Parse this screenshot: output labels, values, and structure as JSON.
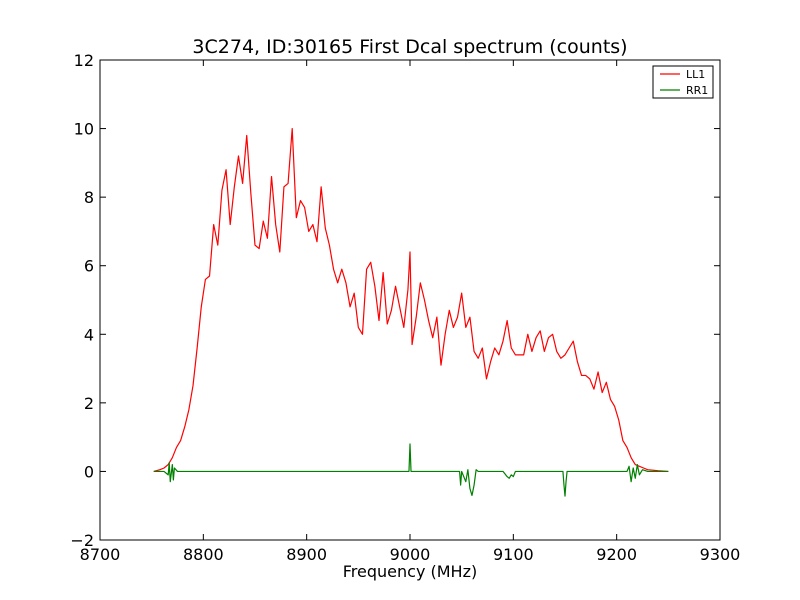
{
  "chart_data": {
    "type": "line",
    "title": "3C274, ID:30165 First Dcal spectrum (counts)",
    "xlabel": "Frequency (MHz)",
    "ylabel": "",
    "xlim": [
      8700,
      9300
    ],
    "ylim": [
      -2,
      12
    ],
    "xticks": [
      "8700",
      "8800",
      "8900",
      "9000",
      "9100",
      "9200",
      "9300"
    ],
    "yticks": [
      "−2",
      "0",
      "2",
      "4",
      "6",
      "8",
      "10",
      "12"
    ],
    "legend_placement": "top-right",
    "grid": false,
    "series": [
      {
        "name": "LL1",
        "color": "#ff0000",
        "x": [
          8752,
          8758,
          8762,
          8766,
          8770,
          8774,
          8778,
          8782,
          8786,
          8790,
          8794,
          8798,
          8802,
          8806,
          8810,
          8814,
          8818,
          8822,
          8826,
          8830,
          8834,
          8838,
          8842,
          8846,
          8850,
          8854,
          8858,
          8862,
          8866,
          8870,
          8874,
          8878,
          8882,
          8886,
          8890,
          8894,
          8898,
          8902,
          8906,
          8910,
          8914,
          8918,
          8922,
          8926,
          8930,
          8934,
          8938,
          8942,
          8946,
          8950,
          8954,
          8958,
          8962,
          8966,
          8970,
          8974,
          8978,
          8982,
          8986,
          8990,
          8994,
          8998,
          9000,
          9002,
          9006,
          9010,
          9014,
          9018,
          9022,
          9026,
          9030,
          9034,
          9038,
          9042,
          9046,
          9050,
          9054,
          9058,
          9062,
          9066,
          9070,
          9074,
          9078,
          9082,
          9086,
          9090,
          9094,
          9098,
          9102,
          9106,
          9110,
          9114,
          9118,
          9122,
          9126,
          9130,
          9134,
          9138,
          9142,
          9146,
          9150,
          9154,
          9158,
          9162,
          9166,
          9170,
          9174,
          9178,
          9182,
          9186,
          9190,
          9194,
          9198,
          9202,
          9206,
          9210,
          9214,
          9218,
          9222,
          9226,
          9230,
          9240,
          9250
        ],
        "values": [
          0.0,
          0.05,
          0.1,
          0.2,
          0.4,
          0.7,
          0.9,
          1.3,
          1.8,
          2.5,
          3.6,
          4.8,
          5.6,
          5.7,
          7.2,
          6.6,
          8.2,
          8.8,
          7.2,
          8.3,
          9.2,
          8.4,
          9.8,
          8.1,
          6.6,
          6.5,
          7.3,
          6.8,
          8.6,
          7.2,
          6.4,
          8.3,
          8.4,
          10.0,
          7.4,
          7.9,
          7.7,
          7.0,
          7.2,
          6.7,
          8.3,
          7.1,
          6.6,
          5.9,
          5.5,
          5.9,
          5.5,
          4.8,
          5.2,
          4.2,
          4.0,
          5.9,
          6.1,
          5.4,
          4.4,
          5.8,
          4.3,
          4.7,
          5.4,
          4.8,
          4.2,
          5.3,
          6.4,
          3.7,
          4.5,
          5.5,
          5.0,
          4.4,
          3.9,
          4.5,
          3.1,
          4.0,
          4.7,
          4.2,
          4.5,
          5.2,
          4.2,
          4.5,
          3.5,
          3.3,
          3.6,
          2.7,
          3.2,
          3.6,
          3.4,
          3.8,
          4.4,
          3.6,
          3.4,
          3.4,
          3.4,
          4.0,
          3.5,
          3.9,
          4.1,
          3.5,
          3.9,
          4.0,
          3.5,
          3.3,
          3.4,
          3.6,
          3.8,
          3.2,
          2.8,
          2.8,
          2.7,
          2.4,
          2.9,
          2.3,
          2.6,
          2.1,
          1.9,
          1.5,
          0.9,
          0.7,
          0.4,
          0.2,
          0.15,
          0.1,
          0.05,
          0.02,
          0.0
        ]
      },
      {
        "name": "RR1",
        "color": "#008000",
        "x": [
          8752,
          8762,
          8766,
          8767,
          8768,
          8770,
          8771,
          8772,
          8775,
          8800,
          8850,
          8900,
          8950,
          8999,
          9000,
          9001,
          9002,
          9040,
          9048,
          9049,
          9050,
          9052,
          9054,
          9056,
          9058,
          9060,
          9062,
          9064,
          9066,
          9070,
          9090,
          9094,
          9096,
          9098,
          9100,
          9102,
          9110,
          9148,
          9149,
          9150,
          9151,
          9152,
          9200,
          9210,
          9212,
          9214,
          9216,
          9218,
          9220,
          9222,
          9225,
          9230,
          9250
        ],
        "values": [
          0.0,
          0.0,
          -0.1,
          0.25,
          -0.3,
          0.2,
          -0.25,
          0.1,
          0.0,
          0.0,
          0.0,
          0.0,
          0.0,
          0.0,
          0.8,
          0.0,
          0.0,
          0.0,
          0.0,
          -0.4,
          0.0,
          -0.15,
          -0.3,
          0.05,
          -0.5,
          -0.7,
          -0.4,
          0.05,
          0.0,
          0.0,
          0.0,
          -0.15,
          -0.2,
          -0.1,
          -0.15,
          0.0,
          0.0,
          0.0,
          -0.4,
          -0.72,
          -0.3,
          0.0,
          0.0,
          0.0,
          0.15,
          -0.3,
          0.1,
          -0.2,
          0.2,
          -0.1,
          0.05,
          0.0,
          0.0
        ]
      }
    ]
  }
}
